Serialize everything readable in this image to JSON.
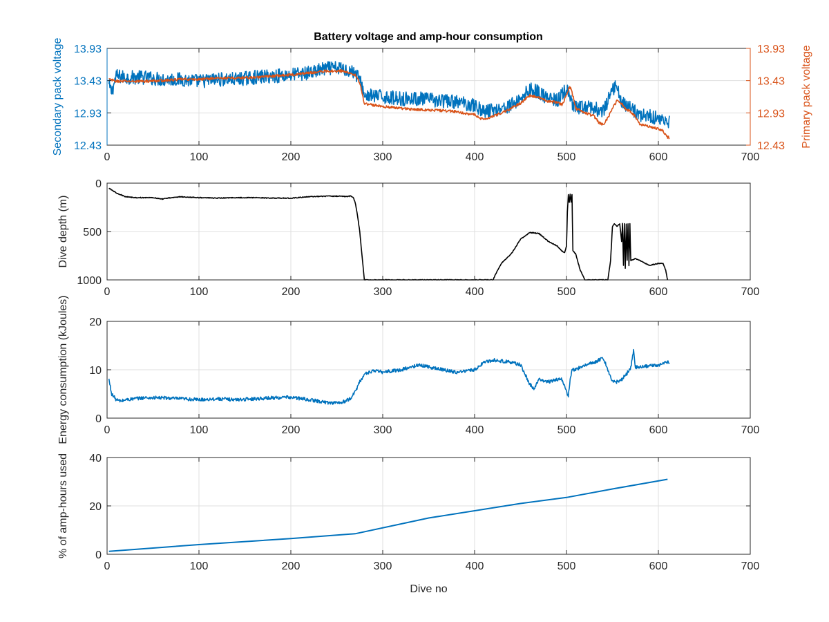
{
  "chart_data": [
    {
      "type": "line",
      "title": "Battery voltage and amp-hour consumption",
      "xlabel": "",
      "ylabel": "Secondary pack voltage",
      "y2label": "Primary pack voltage",
      "xlim": [
        0,
        700
      ],
      "ylim": [
        12.43,
        13.93
      ],
      "y2lim": [
        12.43,
        13.93
      ],
      "xticks": [
        "0",
        "100",
        "200",
        "300",
        "400",
        "500",
        "600",
        "700"
      ],
      "yticks": [
        "12.43",
        "12.93",
        "13.43",
        "13.93"
      ],
      "y2ticks": [
        "12.43",
        "12.93",
        "13.43",
        "13.93"
      ],
      "grid": true,
      "colors": {
        "left_axis": "#0072bd",
        "right_axis": "#d95319"
      },
      "series": [
        {
          "color": "#0072bd",
          "axis": "left",
          "noise": 0.22,
          "x": [
            2,
            5,
            10,
            20,
            40,
            60,
            80,
            100,
            120,
            140,
            160,
            180,
            200,
            220,
            240,
            255,
            265,
            270,
            275,
            280,
            300,
            320,
            340,
            360,
            380,
            400,
            410,
            420,
            430,
            440,
            450,
            460,
            470,
            480,
            490,
            500,
            503,
            506,
            510,
            520,
            530,
            540,
            545,
            550,
            555,
            560,
            565,
            570,
            575,
            580,
            590,
            600,
            610,
            612
          ],
          "y": [
            13.35,
            13.25,
            13.5,
            13.48,
            13.48,
            13.45,
            13.45,
            13.42,
            13.45,
            13.45,
            13.48,
            13.5,
            13.52,
            13.55,
            13.62,
            13.62,
            13.58,
            13.55,
            13.45,
            13.2,
            13.18,
            13.15,
            13.15,
            13.12,
            13.1,
            13.05,
            12.95,
            12.98,
            13.0,
            13.05,
            13.15,
            13.3,
            13.25,
            13.15,
            13.12,
            13.3,
            13.2,
            13.05,
            13.0,
            13.02,
            13.0,
            12.95,
            13.1,
            13.3,
            13.35,
            13.1,
            13.05,
            13.0,
            12.95,
            12.9,
            12.88,
            12.85,
            12.78,
            12.8
          ]
        },
        {
          "color": "#d95319",
          "axis": "right",
          "noise": 0.04,
          "x": [
            2,
            10,
            20,
            40,
            60,
            80,
            100,
            120,
            140,
            160,
            180,
            200,
            220,
            240,
            255,
            265,
            270,
            275,
            278,
            280,
            300,
            320,
            340,
            360,
            380,
            400,
            405,
            410,
            420,
            430,
            440,
            450,
            460,
            470,
            480,
            490,
            495,
            500,
            503,
            505,
            508,
            510,
            520,
            530,
            535,
            540,
            545,
            550,
            555,
            560,
            565,
            570,
            575,
            580,
            590,
            600,
            605,
            610,
            612
          ],
          "y": [
            13.45,
            13.42,
            13.42,
            13.42,
            13.43,
            13.45,
            13.45,
            13.47,
            13.47,
            13.48,
            13.5,
            13.52,
            13.55,
            13.58,
            13.58,
            13.55,
            13.52,
            13.4,
            13.2,
            13.07,
            13.03,
            13.0,
            12.98,
            12.97,
            12.95,
            12.9,
            12.85,
            12.83,
            12.88,
            12.93,
            13.0,
            13.08,
            13.2,
            13.17,
            13.1,
            13.1,
            13.05,
            13.2,
            13.33,
            13.3,
            13.15,
            13.0,
            12.93,
            12.88,
            12.78,
            12.75,
            12.85,
            13.0,
            13.12,
            13.08,
            12.98,
            12.95,
            12.87,
            12.75,
            12.72,
            12.68,
            12.65,
            12.55,
            12.55
          ]
        }
      ]
    },
    {
      "type": "line",
      "xlabel": "",
      "ylabel": "Dive depth (m)",
      "xlim": [
        0,
        700
      ],
      "ylim": [
        0,
        1000
      ],
      "y_reversed": true,
      "xticks": [
        "0",
        "100",
        "200",
        "300",
        "400",
        "500",
        "600",
        "700"
      ],
      "yticks": [
        "0",
        "500",
        "1000"
      ],
      "grid": true,
      "series": [
        {
          "color": "#000000",
          "noise": 8,
          "x": [
            2,
            5,
            10,
            15,
            20,
            30,
            40,
            50,
            60,
            70,
            80,
            100,
            120,
            140,
            160,
            180,
            200,
            220,
            240,
            255,
            262,
            265,
            268,
            270,
            272,
            275,
            278,
            280,
            300,
            350,
            400,
            415,
            420,
            425,
            430,
            440,
            450,
            460,
            470,
            480,
            490,
            495,
            498,
            500,
            501,
            502,
            503,
            504,
            505,
            506,
            507,
            510,
            512,
            515,
            520,
            540,
            545,
            548,
            550,
            552,
            555,
            558,
            560,
            561,
            562,
            563,
            564,
            565,
            566,
            567,
            568,
            569,
            570,
            575,
            580,
            590,
            600,
            605,
            608,
            610
          ],
          "y": [
            50,
            70,
            100,
            120,
            140,
            150,
            150,
            150,
            165,
            150,
            140,
            150,
            155,
            150,
            150,
            155,
            155,
            140,
            135,
            135,
            140,
            130,
            150,
            200,
            300,
            500,
            800,
            1000,
            1000,
            1000,
            1000,
            1000,
            1000,
            900,
            820,
            730,
            580,
            510,
            520,
            600,
            650,
            700,
            720,
            650,
            300,
            120,
            200,
            110,
            200,
            120,
            700,
            730,
            800,
            900,
            1000,
            1000,
            1000,
            800,
            450,
            420,
            450,
            420,
            600,
            420,
            850,
            420,
            880,
            420,
            800,
            420,
            850,
            420,
            800,
            780,
            800,
            850,
            830,
            830,
            900,
            1000
          ]
        }
      ]
    },
    {
      "type": "line",
      "xlabel": "",
      "ylabel": "Energy consumption (kJoules)",
      "xlim": [
        0,
        700
      ],
      "ylim": [
        0,
        20
      ],
      "xticks": [
        "0",
        "100",
        "200",
        "300",
        "400",
        "500",
        "600",
        "700"
      ],
      "yticks": [
        "0",
        "10",
        "20"
      ],
      "grid": true,
      "series": [
        {
          "color": "#0072bd",
          "noise": 0.7,
          "x": [
            2,
            5,
            10,
            15,
            20,
            30,
            40,
            60,
            80,
            100,
            120,
            140,
            160,
            180,
            200,
            220,
            240,
            255,
            265,
            270,
            275,
            280,
            285,
            290,
            300,
            320,
            340,
            360,
            380,
            400,
            410,
            420,
            430,
            440,
            450,
            455,
            460,
            465,
            470,
            480,
            490,
            495,
            500,
            502,
            504,
            506,
            510,
            520,
            530,
            540,
            545,
            550,
            555,
            560,
            565,
            570,
            573,
            575,
            580,
            590,
            600,
            610,
            612
          ],
          "y": [
            8,
            5,
            3.8,
            3.5,
            3.8,
            4,
            4.2,
            4.2,
            4,
            3.8,
            4,
            3.8,
            4,
            4.2,
            4.3,
            3.8,
            3.2,
            3.2,
            4,
            5.5,
            7.5,
            9,
            9.5,
            9.8,
            9.5,
            10,
            11,
            10.2,
            9.5,
            10,
            11.5,
            12,
            11.8,
            11.5,
            11,
            9,
            7,
            6,
            8,
            7.5,
            8,
            8,
            5.5,
            4.5,
            8,
            10,
            10,
            11,
            11.5,
            12.5,
            10,
            7.5,
            7.5,
            8,
            9,
            10.5,
            14,
            10.5,
            10.5,
            10.8,
            11,
            11.5,
            11.5
          ]
        }
      ]
    },
    {
      "type": "line",
      "xlabel": "Dive no",
      "ylabel": "% of amp-hours used",
      "xlim": [
        0,
        700
      ],
      "ylim": [
        0,
        40
      ],
      "xticks": [
        "0",
        "100",
        "200",
        "300",
        "400",
        "500",
        "600",
        "700"
      ],
      "yticks": [
        "0",
        "20",
        "40"
      ],
      "grid": true,
      "series": [
        {
          "color": "#0072bd",
          "noise": 0,
          "x": [
            2,
            100,
            200,
            270,
            350,
            450,
            500,
            550,
            610
          ],
          "y": [
            1.2,
            4,
            6.5,
            8.5,
            15,
            21,
            23.5,
            27,
            31
          ]
        }
      ]
    }
  ]
}
